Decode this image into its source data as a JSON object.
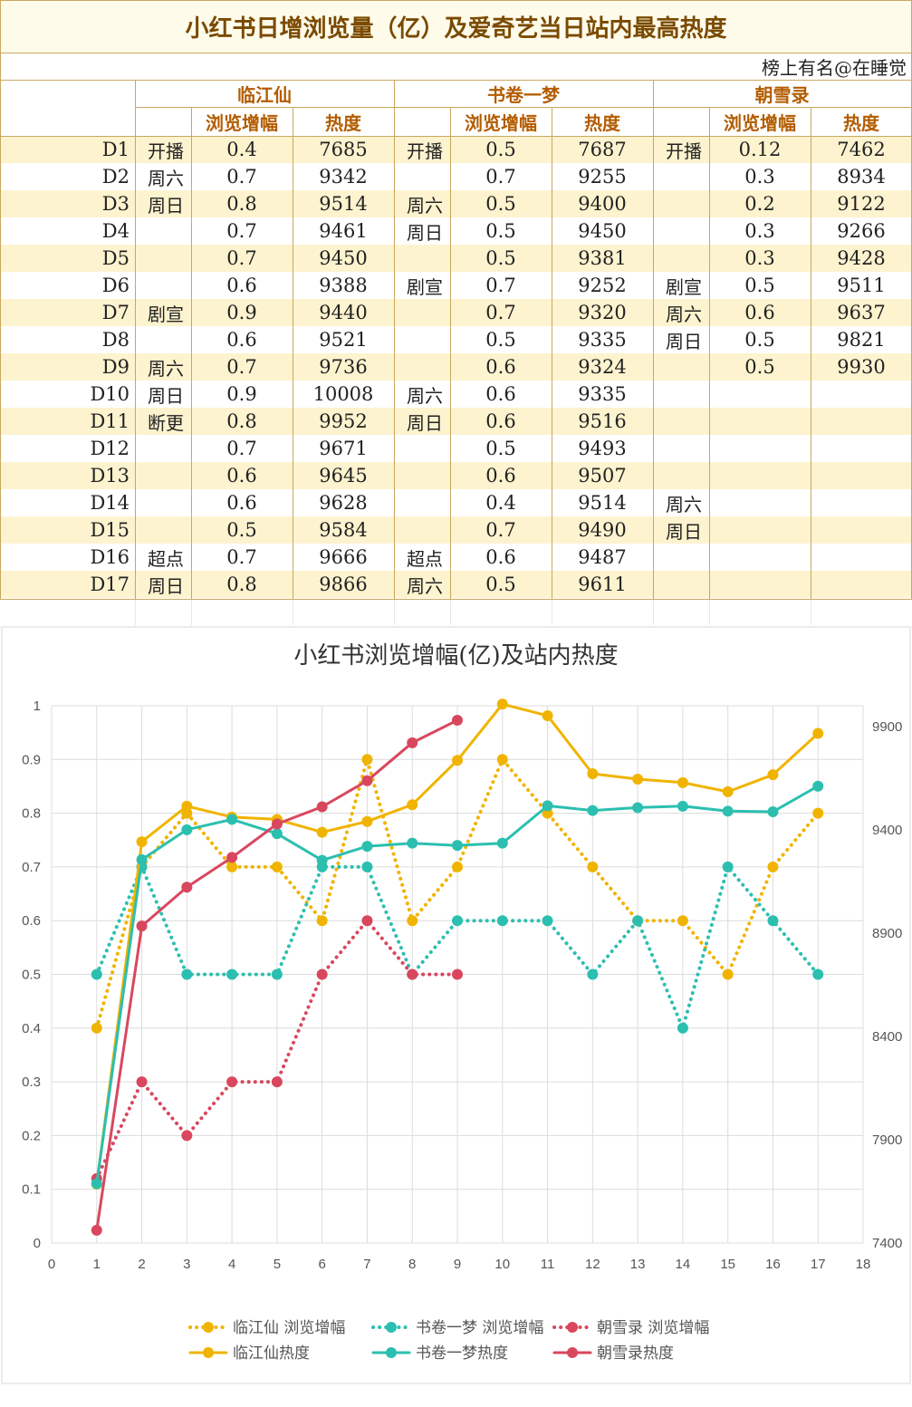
{
  "table": {
    "title": "小红书日增浏览量（亿）及爱奇艺当日站内最高热度",
    "author": "榜上有名@在睡觉",
    "groups": [
      "临江仙",
      "书卷一梦",
      "朝雪录"
    ],
    "subheaders": [
      "浏览增幅",
      "热度"
    ],
    "rows": [
      {
        "day": "D1",
        "a_note": "开播",
        "a_v": "0.4",
        "a_h": "7685",
        "b_note": "开播",
        "b_v": "0.5",
        "b_h": "7687",
        "c_note": "开播",
        "c_v": "0.12",
        "c_h": "7462"
      },
      {
        "day": "D2",
        "a_note": "周六",
        "a_v": "0.7",
        "a_h": "9342",
        "b_note": "",
        "b_v": "0.7",
        "b_h": "9255",
        "c_note": "",
        "c_v": "0.3",
        "c_h": "8934"
      },
      {
        "day": "D3",
        "a_note": "周日",
        "a_v": "0.8",
        "a_h": "9514",
        "b_note": "周六",
        "b_v": "0.5",
        "b_h": "9400",
        "c_note": "",
        "c_v": "0.2",
        "c_h": "9122"
      },
      {
        "day": "D4",
        "a_note": "",
        "a_v": "0.7",
        "a_h": "9461",
        "b_note": "周日",
        "b_v": "0.5",
        "b_h": "9450",
        "c_note": "",
        "c_v": "0.3",
        "c_h": "9266"
      },
      {
        "day": "D5",
        "a_note": "",
        "a_v": "0.7",
        "a_h": "9450",
        "b_note": "",
        "b_v": "0.5",
        "b_h": "9381",
        "c_note": "",
        "c_v": "0.3",
        "c_h": "9428"
      },
      {
        "day": "D6",
        "a_note": "",
        "a_v": "0.6",
        "a_h": "9388",
        "b_note": "剧宣",
        "b_v": "0.7",
        "b_h": "9252",
        "c_note": "剧宣",
        "c_v": "0.5",
        "c_h": "9511"
      },
      {
        "day": "D7",
        "a_note": "剧宣",
        "a_v": "0.9",
        "a_h": "9440",
        "b_note": "",
        "b_v": "0.7",
        "b_h": "9320",
        "c_note": "周六",
        "c_v": "0.6",
        "c_h": "9637"
      },
      {
        "day": "D8",
        "a_note": "",
        "a_v": "0.6",
        "a_h": "9521",
        "b_note": "",
        "b_v": "0.5",
        "b_h": "9335",
        "c_note": "周日",
        "c_v": "0.5",
        "c_h": "9821"
      },
      {
        "day": "D9",
        "a_note": "周六",
        "a_v": "0.7",
        "a_h": "9736",
        "b_note": "",
        "b_v": "0.6",
        "b_h": "9324",
        "c_note": "",
        "c_v": "0.5",
        "c_h": "9930"
      },
      {
        "day": "D10",
        "a_note": "周日",
        "a_v": "0.9",
        "a_h": "10008",
        "b_note": "周六",
        "b_v": "0.6",
        "b_h": "9335",
        "c_note": "",
        "c_v": "",
        "c_h": ""
      },
      {
        "day": "D11",
        "a_note": "断更",
        "a_v": "0.8",
        "a_h": "9952",
        "b_note": "周日",
        "b_v": "0.6",
        "b_h": "9516",
        "c_note": "",
        "c_v": "",
        "c_h": ""
      },
      {
        "day": "D12",
        "a_note": "",
        "a_v": "0.7",
        "a_h": "9671",
        "b_note": "",
        "b_v": "0.5",
        "b_h": "9493",
        "c_note": "",
        "c_v": "",
        "c_h": ""
      },
      {
        "day": "D13",
        "a_note": "",
        "a_v": "0.6",
        "a_h": "9645",
        "b_note": "",
        "b_v": "0.6",
        "b_h": "9507",
        "c_note": "",
        "c_v": "",
        "c_h": ""
      },
      {
        "day": "D14",
        "a_note": "",
        "a_v": "0.6",
        "a_h": "9628",
        "b_note": "",
        "b_v": "0.4",
        "b_h": "9514",
        "c_note": "周六",
        "c_v": "",
        "c_h": ""
      },
      {
        "day": "D15",
        "a_note": "",
        "a_v": "0.5",
        "a_h": "9584",
        "b_note": "",
        "b_v": "0.7",
        "b_h": "9490",
        "c_note": "周日",
        "c_v": "",
        "c_h": ""
      },
      {
        "day": "D16",
        "a_note": "超点",
        "a_v": "0.7",
        "a_h": "9666",
        "b_note": "超点",
        "b_v": "0.6",
        "b_h": "9487",
        "c_note": "",
        "c_v": "",
        "c_h": ""
      },
      {
        "day": "D17",
        "a_note": "周日",
        "a_v": "0.8",
        "a_h": "9866",
        "b_note": "周六",
        "b_v": "0.5",
        "b_h": "9611",
        "c_note": "",
        "c_v": "",
        "c_h": ""
      }
    ]
  },
  "chart_data": {
    "type": "line",
    "title": "小红书浏览增幅(亿)及站内热度",
    "x": [
      1,
      2,
      3,
      4,
      5,
      6,
      7,
      8,
      9,
      10,
      11,
      12,
      13,
      14,
      15,
      16,
      17
    ],
    "xlim": [
      0,
      18
    ],
    "x_ticks": [
      "0",
      "1",
      "2",
      "3",
      "4",
      "5",
      "6",
      "7",
      "8",
      "9",
      "10",
      "11",
      "12",
      "13",
      "14",
      "15",
      "16",
      "17",
      "18"
    ],
    "ylim_left": [
      0,
      1
    ],
    "y_left_ticks": [
      "0",
      "0.1",
      "0.2",
      "0.3",
      "0.4",
      "0.5",
      "0.6",
      "0.7",
      "0.8",
      "0.9",
      "1"
    ],
    "ylim_right": [
      7400,
      10000
    ],
    "y_right_ticks": [
      "7400",
      "7900",
      "8400",
      "8900",
      "9400",
      "9900"
    ],
    "grid": true,
    "legend_position": "bottom",
    "series": [
      {
        "name": "临江仙 浏览增幅",
        "axis": "left",
        "style": "dotted",
        "color": "#f0b400",
        "values": [
          0.4,
          0.7,
          0.8,
          0.7,
          0.7,
          0.6,
          0.9,
          0.6,
          0.7,
          0.9,
          0.8,
          0.7,
          0.6,
          0.6,
          0.5,
          0.7,
          0.8
        ]
      },
      {
        "name": "书卷一梦 浏览增幅",
        "axis": "left",
        "style": "dotted",
        "color": "#2cbfb0",
        "values": [
          0.5,
          0.7,
          0.5,
          0.5,
          0.5,
          0.7,
          0.7,
          0.5,
          0.6,
          0.6,
          0.6,
          0.5,
          0.6,
          0.4,
          0.7,
          0.6,
          0.5
        ]
      },
      {
        "name": "朝雪录 浏览增幅",
        "axis": "left",
        "style": "dotted",
        "color": "#d9475e",
        "values": [
          0.12,
          0.3,
          0.2,
          0.3,
          0.3,
          0.5,
          0.6,
          0.5,
          0.5,
          null,
          null,
          null,
          null,
          null,
          null,
          null,
          null
        ]
      },
      {
        "name": "临江仙热度",
        "axis": "right",
        "style": "solid",
        "color": "#f0b400",
        "values": [
          7685,
          9342,
          9514,
          9461,
          9450,
          9388,
          9440,
          9521,
          9736,
          10008,
          9952,
          9671,
          9645,
          9628,
          9584,
          9666,
          9866
        ]
      },
      {
        "name": "书卷一梦热度",
        "axis": "right",
        "style": "solid",
        "color": "#2cbfb0",
        "values": [
          7687,
          9255,
          9400,
          9450,
          9381,
          9252,
          9320,
          9335,
          9324,
          9335,
          9516,
          9493,
          9507,
          9514,
          9490,
          9487,
          9611
        ]
      },
      {
        "name": "朝雪录热度",
        "axis": "right",
        "style": "solid",
        "color": "#d9475e",
        "values": [
          7462,
          8934,
          9122,
          9266,
          9428,
          9511,
          9637,
          9821,
          9930,
          null,
          null,
          null,
          null,
          null,
          null,
          null,
          null
        ]
      }
    ]
  }
}
